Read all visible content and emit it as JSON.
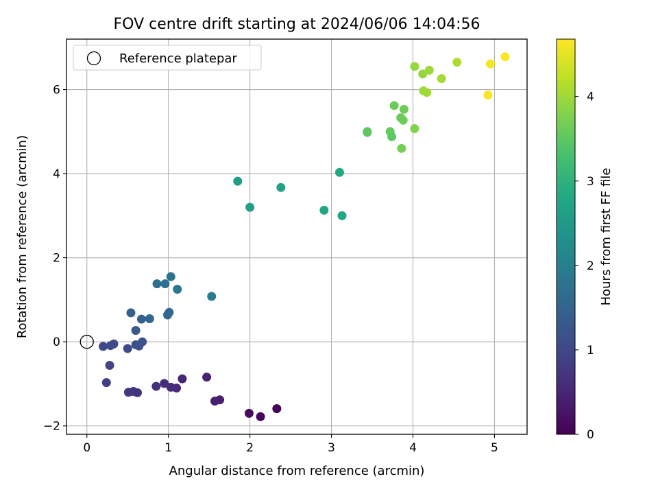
{
  "chart_data": {
    "type": "scatter",
    "title": "FOV centre drift starting at 2024/06/06 14:04:56",
    "xlabel": "Angular distance from reference (arcmin)",
    "ylabel": "Rotation from reference (arcmin)",
    "xlim": [
      -0.25,
      5.4
    ],
    "ylim": [
      -2.2,
      7.2
    ],
    "xticks": [
      0,
      1,
      2,
      3,
      4,
      5
    ],
    "yticks": [
      -2,
      0,
      2,
      4,
      6
    ],
    "grid": true,
    "legend": {
      "placement": "top-left",
      "entries": [
        "Reference platepar"
      ]
    },
    "reference_point": {
      "x": 0,
      "y": 0
    },
    "colorbar": {
      "label": "Hours from first FF file",
      "range": [
        0,
        4.68
      ],
      "ticks": [
        0,
        1,
        2,
        3,
        4
      ],
      "colormap": "viridis"
    },
    "points": [
      {
        "x": 2.33,
        "y": -1.59,
        "c": 0.05
      },
      {
        "x": 2.13,
        "y": -1.78,
        "c": 0.1
      },
      {
        "x": 1.99,
        "y": -1.7,
        "c": 0.15
      },
      {
        "x": 1.63,
        "y": -1.38,
        "c": 0.4
      },
      {
        "x": 1.57,
        "y": -1.41,
        "c": 0.42
      },
      {
        "x": 1.47,
        "y": -0.84,
        "c": 0.45
      },
      {
        "x": 1.17,
        "y": -0.88,
        "c": 0.5
      },
      {
        "x": 1.1,
        "y": -1.1,
        "c": 0.55
      },
      {
        "x": 1.03,
        "y": -1.08,
        "c": 0.58
      },
      {
        "x": 0.95,
        "y": -0.99,
        "c": 0.6
      },
      {
        "x": 0.85,
        "y": -1.06,
        "c": 0.63
      },
      {
        "x": 0.62,
        "y": -1.21,
        "c": 0.7
      },
      {
        "x": 0.57,
        "y": -1.18,
        "c": 0.72
      },
      {
        "x": 0.51,
        "y": -1.2,
        "c": 0.75
      },
      {
        "x": 0.24,
        "y": -0.97,
        "c": 0.85
      },
      {
        "x": 0.28,
        "y": -0.56,
        "c": 0.95
      },
      {
        "x": 0.2,
        "y": -0.11,
        "c": 1.0
      },
      {
        "x": 0.29,
        "y": -0.09,
        "c": 1.02
      },
      {
        "x": 0.33,
        "y": -0.05,
        "c": 1.05
      },
      {
        "x": 0.5,
        "y": -0.16,
        "c": 1.08
      },
      {
        "x": 0.6,
        "y": -0.07,
        "c": 1.12
      },
      {
        "x": 0.64,
        "y": -0.1,
        "c": 1.15
      },
      {
        "x": 0.68,
        "y": 0.0,
        "c": 1.2
      },
      {
        "x": 0.6,
        "y": 0.27,
        "c": 1.3
      },
      {
        "x": 0.54,
        "y": 0.69,
        "c": 1.4
      },
      {
        "x": 0.67,
        "y": 0.54,
        "c": 1.45
      },
      {
        "x": 0.77,
        "y": 0.55,
        "c": 1.5
      },
      {
        "x": 0.99,
        "y": 0.64,
        "c": 1.55
      },
      {
        "x": 1.01,
        "y": 0.7,
        "c": 1.6
      },
      {
        "x": 0.86,
        "y": 1.38,
        "c": 1.7
      },
      {
        "x": 0.96,
        "y": 1.38,
        "c": 1.75
      },
      {
        "x": 1.03,
        "y": 1.55,
        "c": 1.8
      },
      {
        "x": 1.11,
        "y": 1.25,
        "c": 1.85
      },
      {
        "x": 1.53,
        "y": 1.08,
        "c": 1.95
      },
      {
        "x": 1.85,
        "y": 3.82,
        "c": 2.6
      },
      {
        "x": 2.0,
        "y": 3.2,
        "c": 2.65
      },
      {
        "x": 2.38,
        "y": 3.67,
        "c": 2.7
      },
      {
        "x": 2.91,
        "y": 3.13,
        "c": 2.75
      },
      {
        "x": 3.1,
        "y": 4.03,
        "c": 2.8
      },
      {
        "x": 3.13,
        "y": 3.0,
        "c": 2.78
      },
      {
        "x": 3.44,
        "y": 5.0,
        "c": 3.5
      },
      {
        "x": 3.44,
        "y": 4.98,
        "c": 3.52
      },
      {
        "x": 3.72,
        "y": 5.0,
        "c": 3.55
      },
      {
        "x": 3.74,
        "y": 4.88,
        "c": 3.5
      },
      {
        "x": 3.77,
        "y": 5.62,
        "c": 3.6
      },
      {
        "x": 3.85,
        "y": 5.33,
        "c": 3.6
      },
      {
        "x": 3.88,
        "y": 5.27,
        "c": 3.62
      },
      {
        "x": 3.89,
        "y": 5.53,
        "c": 3.65
      },
      {
        "x": 3.86,
        "y": 4.6,
        "c": 3.7
      },
      {
        "x": 4.02,
        "y": 5.07,
        "c": 3.8
      },
      {
        "x": 4.02,
        "y": 6.55,
        "c": 3.95
      },
      {
        "x": 4.12,
        "y": 6.37,
        "c": 3.95
      },
      {
        "x": 4.2,
        "y": 6.46,
        "c": 4.0
      },
      {
        "x": 4.13,
        "y": 5.97,
        "c": 4.0
      },
      {
        "x": 4.17,
        "y": 5.93,
        "c": 4.02
      },
      {
        "x": 4.35,
        "y": 6.26,
        "c": 4.05
      },
      {
        "x": 4.54,
        "y": 6.65,
        "c": 4.1
      },
      {
        "x": 4.92,
        "y": 5.87,
        "c": 4.65
      },
      {
        "x": 4.95,
        "y": 6.61,
        "c": 4.6
      },
      {
        "x": 5.13,
        "y": 6.78,
        "c": 4.68
      }
    ]
  }
}
